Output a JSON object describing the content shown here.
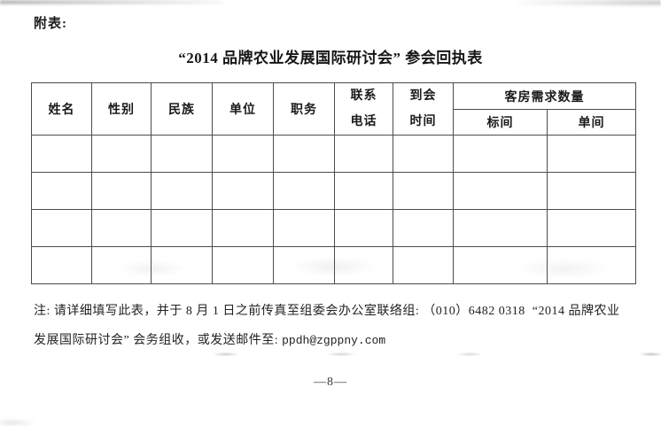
{
  "page": {
    "attachment_label": "附表:",
    "title": "“2014 品牌农业发展国际研讨会” 参会回执表",
    "page_number": "—8—"
  },
  "table": {
    "headers": [
      "姓名",
      "性别",
      "民族",
      "单位",
      "职务",
      "联系\n电话",
      "到会\n时间"
    ],
    "room_group": {
      "label": "客房需求数量",
      "sub": [
        "标间",
        "单间"
      ]
    },
    "body": {
      "rows": 4,
      "cols": 9
    }
  },
  "note": {
    "line1": "注: 请详细填写此表，并于 8 月 1 日之前传真至组委会办公室联络组: （010）6482 0318  “2014 品牌农业",
    "line2_text": "发展国际研讨会” 会务组收，或发送邮件至: ",
    "email": "ppdh@zgppny.com"
  },
  "colors": {
    "text": "#1f1f1f",
    "table_border": "#4c4c4c",
    "background": "#ffffff"
  }
}
